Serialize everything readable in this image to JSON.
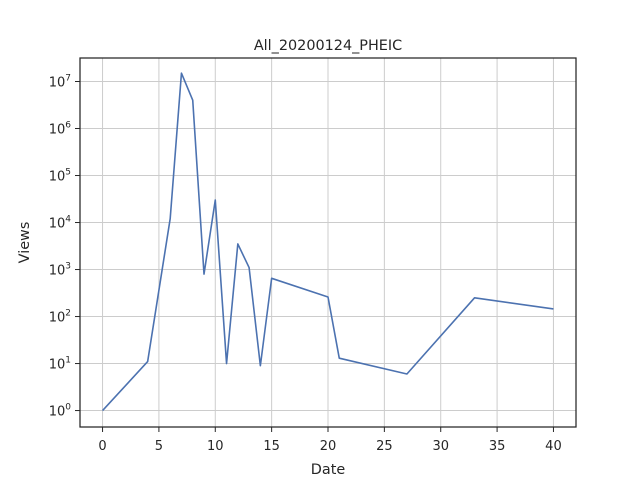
{
  "chart_data": {
    "type": "line",
    "title": "All_20200124_PHEIC",
    "xlabel": "Date",
    "ylabel": "Views",
    "xlim": [
      -2,
      42
    ],
    "ylim_log10": [
      -0.35,
      7.5
    ],
    "yscale": "log",
    "grid": true,
    "x_ticks": [
      0,
      5,
      10,
      15,
      20,
      25,
      30,
      35,
      40
    ],
    "y_tick_exponents": [
      0,
      1,
      2,
      3,
      4,
      5,
      6,
      7
    ],
    "y_tick_base": "10",
    "line_color": "#4c72b0",
    "series": [
      {
        "x": [
          0,
          4,
          6,
          7,
          8,
          9,
          10,
          11,
          12,
          13,
          14,
          15,
          20,
          21,
          27,
          33,
          40
        ],
        "y": [
          1,
          11,
          12000,
          15000000,
          4000000,
          800,
          30000,
          10,
          3500,
          1100,
          9,
          650,
          260,
          13,
          6,
          250,
          145
        ]
      }
    ]
  }
}
